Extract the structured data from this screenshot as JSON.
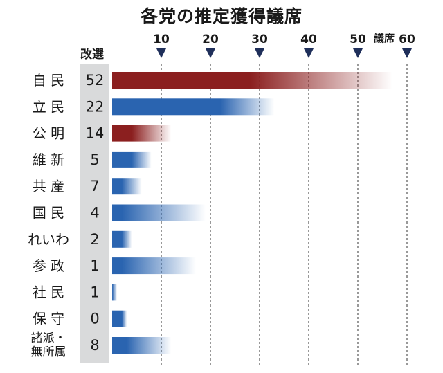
{
  "chart_data": {
    "type": "bar",
    "title": "各党の推定獲得議席",
    "x_unit_label": "議席",
    "xlim": [
      0,
      60
    ],
    "x_ticks": [
      10,
      20,
      30,
      40,
      50,
      60
    ],
    "column_header": "改選",
    "grid": "vertical dashed at ticks",
    "series": [
      {
        "name": "推定獲得議席",
        "categories": [
          "自民",
          "立民",
          "公明",
          "維新",
          "共産",
          "国民",
          "れいわ",
          "参政",
          "社民",
          "保守",
          "諸派・無所属"
        ],
        "category_lines": [
          [
            "自 民"
          ],
          [
            "立 民"
          ],
          [
            "公 明"
          ],
          [
            "維 新"
          ],
          [
            "共 産"
          ],
          [
            "国 民"
          ],
          [
            "れいわ"
          ],
          [
            "参 政"
          ],
          [
            "社 民"
          ],
          [
            "保 守"
          ],
          [
            "諸派・",
            "無所属"
          ]
        ],
        "seats_up": [
          "52",
          "22",
          "14",
          "5",
          "7",
          "4",
          "2",
          "1",
          "1",
          "0",
          "8"
        ],
        "range_low": [
          28,
          22,
          4,
          4,
          2,
          2,
          2,
          2,
          0,
          2,
          3
        ],
        "range_high": [
          57,
          33,
          12,
          8,
          6,
          19,
          4,
          17,
          1,
          3,
          12
        ]
      }
    ],
    "colors": {
      "ruling": "#8b1f1f",
      "opposition": "#2a64b0",
      "column_bg": "#d9dadb"
    },
    "bar_color_key": [
      "ruling",
      "opposition",
      "ruling",
      "opposition",
      "opposition",
      "opposition",
      "opposition",
      "opposition",
      "opposition",
      "opposition",
      "opposition"
    ]
  }
}
